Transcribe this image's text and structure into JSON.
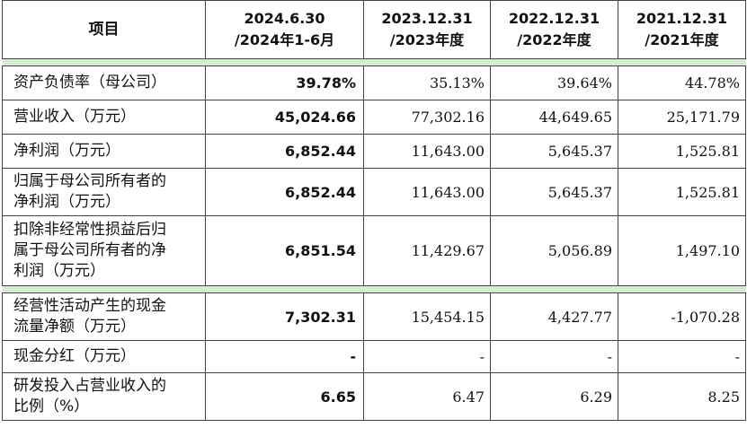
{
  "header": {
    "item": "项目",
    "cols": [
      "2024.6.30",
      "/2024年1-6月",
      "2023.12.31",
      "/2023年度",
      "2022.12.31",
      "/2022年度",
      "2021.12.31",
      "/2021年度"
    ]
  },
  "rows": [
    {
      "label": "资产负债率（母公司）",
      "v": [
        "39.78%",
        "35.13%",
        "39.64%",
        "44.78%"
      ]
    },
    {
      "label": "营业收入（万元）",
      "v": [
        "45,024.66",
        "77,302.16",
        "44,649.65",
        "25,171.79"
      ]
    },
    {
      "label": "净利润（万元）",
      "v": [
        "6,852.44",
        "11,643.00",
        "5,645.37",
        "1,525.81"
      ]
    },
    {
      "label1": "归属于母公司所有者的",
      "label2": "净利润（万元）",
      "v": [
        "6,852.44",
        "11,643.00",
        "5,645.37",
        "1,525.81"
      ]
    },
    {
      "label1": "扣除非经常性损益后归",
      "label2": "属于母公司所有者的净",
      "label3": "利润（万元）",
      "v": [
        "6,851.54",
        "11,429.67",
        "5,056.89",
        "1,497.10"
      ]
    },
    {
      "label1": "经营性活动产生的现金",
      "label2": "流量净额（万元）",
      "v": [
        "7,302.31",
        "15,454.15",
        "4,427.77",
        "-1,070.28"
      ]
    },
    {
      "label": "现金分红（万元）",
      "v": [
        "-",
        "-",
        "-",
        "-"
      ]
    },
    {
      "label1": "研发投入占营业收入的",
      "label2": "比例（%）",
      "v": [
        "6.65",
        "6.47",
        "6.29",
        "8.25"
      ]
    }
  ]
}
